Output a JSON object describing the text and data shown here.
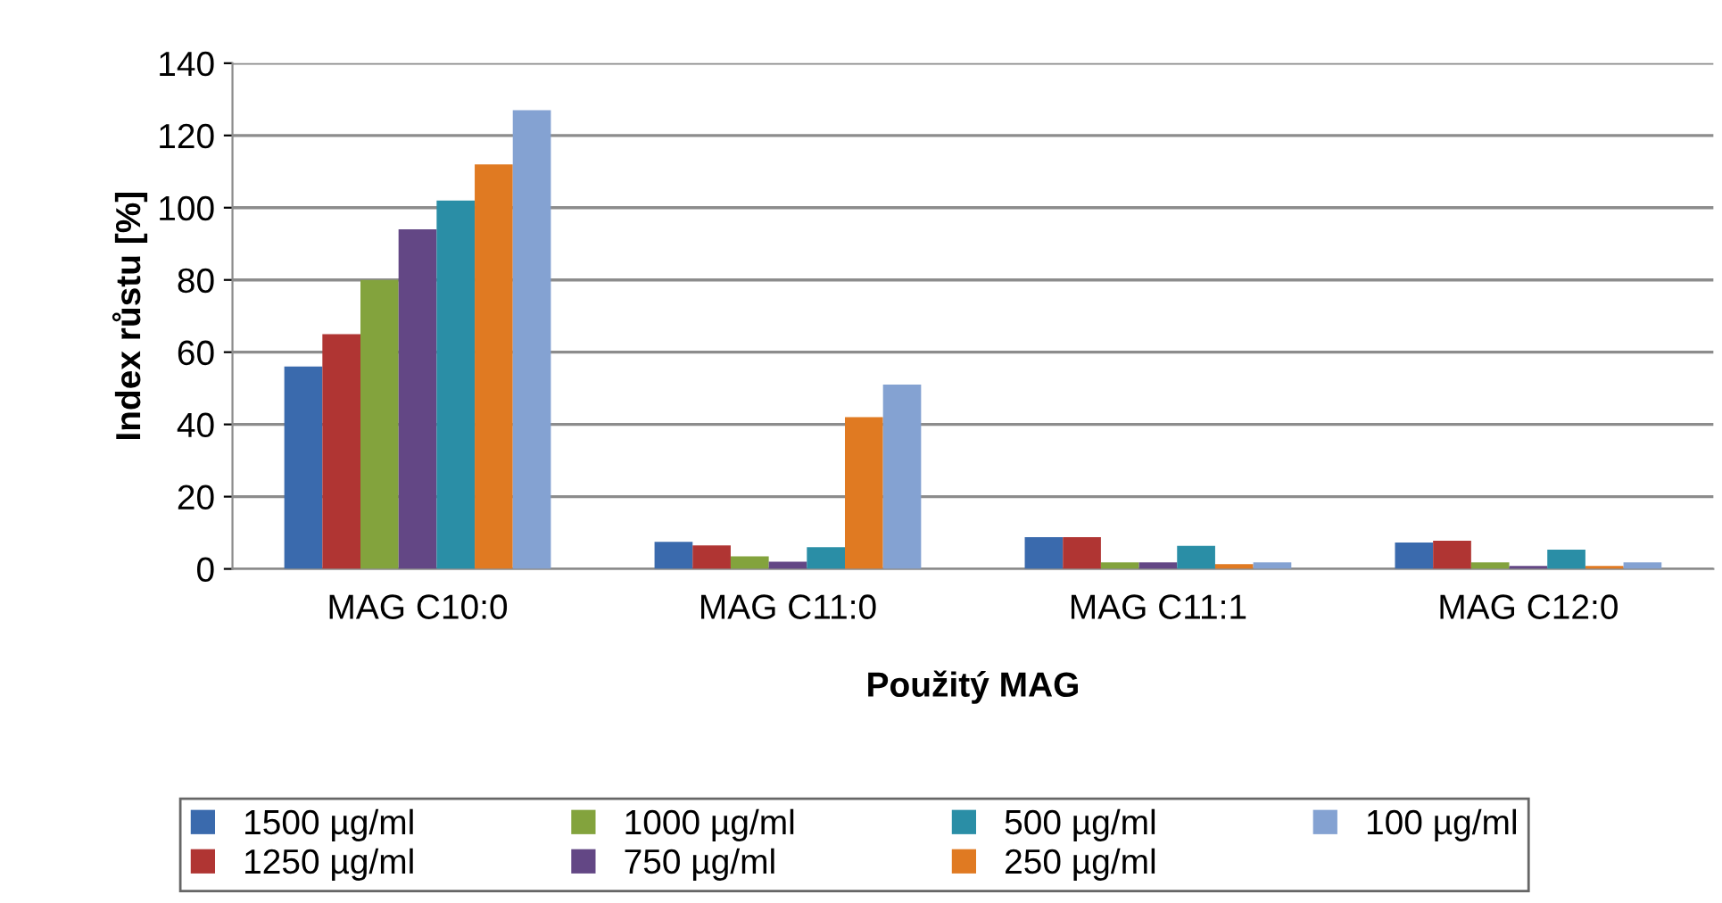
{
  "chart_data": {
    "type": "bar",
    "xlabel": "Použitý MAG",
    "ylabel": "Index růstu [%]",
    "categories": [
      "MAG C10:0",
      "MAG C11:0",
      "MAG C11:1",
      "MAG C12:0"
    ],
    "series": [
      {
        "name": "1500 µg/ml",
        "color": "#3a6aad",
        "values": [
          56,
          7.5,
          8.8,
          7.3
        ]
      },
      {
        "name": "1250 µg/ml",
        "color": "#b03533",
        "values": [
          65,
          6.5,
          8.8,
          7.8
        ]
      },
      {
        "name": "1000 µg/ml",
        "color": "#83a33d",
        "values": [
          80,
          3.5,
          1.8,
          1.8
        ]
      },
      {
        "name": "750 µg/ml",
        "color": "#634785",
        "values": [
          94,
          2,
          1.8,
          0.8
        ]
      },
      {
        "name": "500 µg/ml",
        "color": "#2a8ea6",
        "values": [
          102,
          6,
          6.4,
          5.3
        ]
      },
      {
        "name": "250 µg/ml",
        "color": "#e07a22",
        "values": [
          112,
          42,
          1.3,
          0.8
        ]
      },
      {
        "name": "100 µg/ml",
        "color": "#84a2d2",
        "values": [
          127,
          51,
          1.8,
          1.8
        ]
      }
    ],
    "ylim": [
      0,
      140
    ],
    "yticks": [
      0,
      20,
      40,
      60,
      80,
      100,
      120,
      140
    ],
    "grid": "y",
    "legend": "bottom"
  }
}
